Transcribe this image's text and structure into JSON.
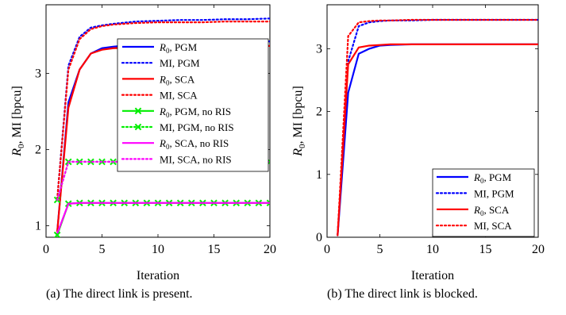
{
  "chart_data": [
    {
      "type": "line",
      "caption": "(a) The direct link is present.",
      "xlabel": "Iteration",
      "ylabel": "R0, MI [bpcu]",
      "xlim": [
        0,
        20
      ],
      "ylim": [
        0.85,
        3.9
      ],
      "xticks": [
        0,
        5,
        10,
        15,
        20
      ],
      "yticks": [
        1,
        2,
        3
      ],
      "grid": false,
      "legend_position": "top-right",
      "x": [
        1,
        2,
        3,
        4,
        5,
        6,
        8,
        10,
        12,
        14,
        16,
        18,
        20
      ],
      "series": [
        {
          "name": "R0, PGM",
          "legend_parts": [
            "R",
            "0",
            ", PGM"
          ],
          "color": "#0000ff",
          "dash": "solid",
          "marker": "none",
          "values": [
            0.92,
            2.62,
            3.05,
            3.26,
            3.33,
            3.35,
            3.38,
            3.39,
            3.4,
            3.4,
            3.41,
            3.41,
            3.42
          ]
        },
        {
          "name": "MI, PGM",
          "legend_parts": [
            "MI, PGM"
          ],
          "color": "#0000ff",
          "dash": "dotted",
          "marker": "none",
          "values": [
            1.35,
            3.1,
            3.48,
            3.6,
            3.63,
            3.65,
            3.68,
            3.69,
            3.7,
            3.7,
            3.71,
            3.71,
            3.72
          ]
        },
        {
          "name": "R0, SCA",
          "legend_parts": [
            "R",
            "0",
            ", SCA"
          ],
          "color": "#ff0000",
          "dash": "solid",
          "marker": "none",
          "values": [
            0.92,
            2.55,
            3.05,
            3.26,
            3.31,
            3.33,
            3.34,
            3.35,
            3.35,
            3.35,
            3.36,
            3.36,
            3.36
          ]
        },
        {
          "name": "MI, SCA",
          "legend_parts": [
            "MI, SCA"
          ],
          "color": "#ff0000",
          "dash": "dotted",
          "marker": "none",
          "values": [
            1.35,
            3.05,
            3.45,
            3.58,
            3.62,
            3.64,
            3.66,
            3.67,
            3.67,
            3.67,
            3.68,
            3.68,
            3.68
          ]
        },
        {
          "name": "R0, PGM, no RIS",
          "legend_parts": [
            "R",
            "0",
            ", PGM, no RIS"
          ],
          "color": "#00ee00",
          "dash": "solid",
          "marker": "x",
          "x": [
            1,
            2,
            3,
            4,
            5,
            6,
            7,
            8,
            9,
            10,
            11,
            12,
            13,
            14,
            15,
            16,
            17,
            18,
            19,
            20
          ],
          "values": [
            0.88,
            1.29,
            1.3,
            1.3,
            1.3,
            1.3,
            1.3,
            1.3,
            1.3,
            1.3,
            1.3,
            1.3,
            1.3,
            1.3,
            1.3,
            1.3,
            1.3,
            1.3,
            1.3,
            1.3
          ]
        },
        {
          "name": "MI, PGM, no RIS",
          "legend_parts": [
            "MI, PGM, no RIS"
          ],
          "color": "#00ee00",
          "dash": "dotted",
          "marker": "x",
          "x": [
            1,
            2,
            3,
            4,
            5,
            6,
            7,
            8,
            9,
            10,
            11,
            12,
            13,
            14,
            15,
            16,
            17,
            18,
            19,
            20
          ],
          "values": [
            1.34,
            1.84,
            1.84,
            1.84,
            1.84,
            1.84,
            1.84,
            1.84,
            1.84,
            1.84,
            1.84,
            1.84,
            1.84,
            1.84,
            1.84,
            1.84,
            1.84,
            1.84,
            1.84,
            1.84
          ]
        },
        {
          "name": "R0, SCA, no RIS",
          "legend_parts": [
            "R",
            "0",
            ", SCA, no RIS"
          ],
          "color": "#ff00ff",
          "dash": "solid",
          "marker": "none",
          "x": [
            1,
            2,
            3,
            4,
            5,
            6,
            7,
            8,
            9,
            10,
            11,
            12,
            13,
            14,
            15,
            16,
            17,
            18,
            19,
            20
          ],
          "values": [
            0.9,
            1.29,
            1.3,
            1.3,
            1.3,
            1.3,
            1.3,
            1.3,
            1.3,
            1.3,
            1.3,
            1.3,
            1.3,
            1.3,
            1.3,
            1.3,
            1.3,
            1.3,
            1.3,
            1.3
          ]
        },
        {
          "name": "MI, SCA, no RIS",
          "legend_parts": [
            "MI, SCA, no RIS"
          ],
          "color": "#ff00ff",
          "dash": "dotted",
          "marker": "none",
          "x": [
            1,
            2,
            3,
            4,
            5,
            6,
            7,
            8,
            9,
            10,
            11,
            12,
            13,
            14,
            15,
            16,
            17,
            18,
            19,
            20
          ],
          "values": [
            1.34,
            1.84,
            1.84,
            1.84,
            1.84,
            1.84,
            1.84,
            1.84,
            1.84,
            1.84,
            1.84,
            1.84,
            1.84,
            1.84,
            1.84,
            1.84,
            1.84,
            1.84,
            1.84,
            1.84
          ]
        }
      ]
    },
    {
      "type": "line",
      "caption": "(b) The direct link is blocked.",
      "xlabel": "Iteration",
      "ylabel": "R0, MI [bpcu]",
      "xlim": [
        0,
        20
      ],
      "ylim": [
        0,
        3.7
      ],
      "xticks": [
        0,
        5,
        10,
        15,
        20
      ],
      "yticks": [
        0,
        1,
        2,
        3
      ],
      "grid": false,
      "legend_position": "bottom-right",
      "x": [
        1,
        2,
        3,
        4,
        5,
        6,
        8,
        10,
        12,
        14,
        16,
        18,
        20
      ],
      "series": [
        {
          "name": "R0, PGM",
          "legend_parts": [
            "R",
            "0",
            ", PGM"
          ],
          "color": "#0000ff",
          "dash": "solid",
          "marker": "none",
          "values": [
            0.03,
            2.3,
            2.92,
            3.0,
            3.05,
            3.06,
            3.07,
            3.07,
            3.07,
            3.07,
            3.07,
            3.07,
            3.07
          ]
        },
        {
          "name": "MI, PGM",
          "legend_parts": [
            "MI, PGM"
          ],
          "color": "#0000ff",
          "dash": "dotted",
          "marker": "none",
          "values": [
            0.03,
            2.8,
            3.36,
            3.42,
            3.44,
            3.45,
            3.45,
            3.46,
            3.46,
            3.46,
            3.46,
            3.46,
            3.46
          ]
        },
        {
          "name": "R0, SCA",
          "legend_parts": [
            "R",
            "0",
            ", SCA"
          ],
          "color": "#ff0000",
          "dash": "solid",
          "marker": "none",
          "values": [
            0.03,
            2.75,
            3.02,
            3.05,
            3.06,
            3.07,
            3.07,
            3.07,
            3.07,
            3.07,
            3.07,
            3.07,
            3.07
          ]
        },
        {
          "name": "MI, SCA",
          "legend_parts": [
            "MI, SCA"
          ],
          "color": "#ff0000",
          "dash": "dotted",
          "marker": "none",
          "values": [
            0.03,
            3.2,
            3.42,
            3.44,
            3.45,
            3.45,
            3.46,
            3.46,
            3.46,
            3.46,
            3.46,
            3.46,
            3.46
          ]
        }
      ]
    }
  ]
}
